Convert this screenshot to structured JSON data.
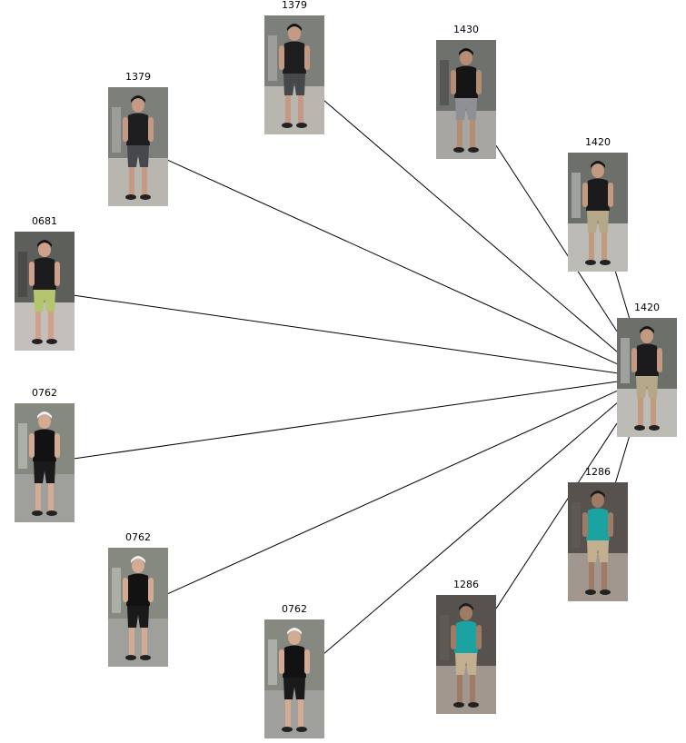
{
  "query": {
    "id": "1420",
    "palette": "p1420"
  },
  "gallery": [
    {
      "id": "1379",
      "palette": "p1379"
    },
    {
      "id": "1430",
      "palette": "p1430"
    },
    {
      "id": "1420",
      "palette": "p1420"
    },
    {
      "id": "1379",
      "palette": "p1379"
    },
    {
      "id": "0681",
      "palette": "p0681"
    },
    {
      "id": "0762",
      "palette": "p0762"
    },
    {
      "id": "0762",
      "palette": "p0762"
    },
    {
      "id": "0762",
      "palette": "p0762"
    },
    {
      "id": "1286",
      "palette": "p1286"
    },
    {
      "id": "1286",
      "palette": "p1286"
    }
  ],
  "palettes": {
    "p1379": {
      "bg": "#7d7f7a",
      "ground": "#b9b6b0",
      "skin": "#c49a84",
      "top": "#1e1e20",
      "bottom": "#46484c",
      "hair": "#151515",
      "extra": "#d9d9d6"
    },
    "p1430": {
      "bg": "#6f716c",
      "ground": "#a7a6a2",
      "skin": "#b58d74",
      "top": "#151515",
      "bottom": "#8e9095",
      "hair": "#101010",
      "extra": "#2a2a2a"
    },
    "p1420": {
      "bg": "#6c6f6a",
      "ground": "#bdbbb6",
      "skin": "#c29a80",
      "top": "#1b1b1d",
      "bottom": "#b5a888",
      "hair": "#141414",
      "extra": "#ffffff"
    },
    "p0681": {
      "bg": "#5d5f5a",
      "ground": "#c3c0bb",
      "skin": "#cfa18a",
      "top": "#1c1c1c",
      "bottom": "#b3c56d",
      "hair": "#141414",
      "extra": "#2b2b2b"
    },
    "p0762": {
      "bg": "#85897f",
      "ground": "#9fa09c",
      "skin": "#d3ab94",
      "top": "#121212",
      "bottom": "#1a1a1a",
      "hair": "#f2f2f2",
      "extra": "#f5f5f5"
    },
    "p1286": {
      "bg": "#58524e",
      "ground": "#a2978f",
      "skin": "#9f7b66",
      "top": "#1aa3a0",
      "bottom": "#c2af90",
      "hair": "#1c1c1c",
      "extra": "#6e6661"
    }
  }
}
